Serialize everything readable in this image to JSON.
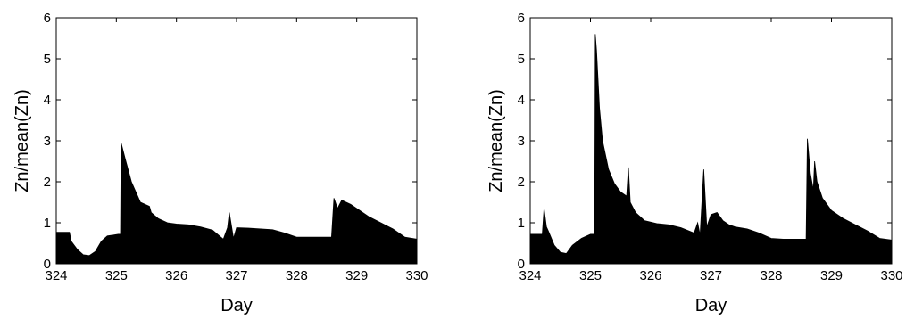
{
  "chart_data": [
    {
      "type": "area",
      "title": "",
      "xlabel": "Day",
      "ylabel": "Zn/mean(Zn)",
      "xlim": [
        324,
        330
      ],
      "ylim": [
        0,
        6
      ],
      "xticks": [
        "324",
        "325",
        "326",
        "327",
        "328",
        "329",
        "330"
      ],
      "yticks": [
        "0",
        "1",
        "2",
        "3",
        "4",
        "5",
        "6"
      ],
      "grid": false,
      "color": "#000000",
      "series": [
        {
          "x": [
            324.0,
            324.22,
            324.25,
            324.35,
            324.45,
            324.55,
            324.65,
            324.75,
            324.85,
            324.95,
            325.03,
            325.07,
            325.08,
            325.15,
            325.25,
            325.4,
            325.55,
            325.58,
            325.7,
            325.85,
            326.0,
            326.2,
            326.4,
            326.6,
            326.78,
            326.85,
            326.88,
            326.95,
            327.0,
            327.2,
            327.4,
            327.6,
            327.8,
            328.0,
            328.2,
            328.4,
            328.58,
            328.62,
            328.68,
            328.75,
            328.9,
            329.05,
            329.2,
            329.4,
            329.6,
            329.8,
            330.0
          ],
          "y": [
            0.77,
            0.77,
            0.55,
            0.35,
            0.22,
            0.2,
            0.3,
            0.55,
            0.68,
            0.7,
            0.72,
            0.72,
            2.95,
            2.55,
            2.0,
            1.5,
            1.4,
            1.25,
            1.1,
            1.0,
            0.97,
            0.95,
            0.9,
            0.82,
            0.6,
            0.88,
            1.25,
            0.62,
            0.88,
            0.87,
            0.85,
            0.83,
            0.75,
            0.65,
            0.65,
            0.65,
            0.65,
            1.6,
            1.35,
            1.55,
            1.45,
            1.3,
            1.15,
            1.0,
            0.85,
            0.65,
            0.6
          ]
        }
      ]
    },
    {
      "type": "area",
      "title": "",
      "xlabel": "Day",
      "ylabel": "Zn/mean(Zn)",
      "xlim": [
        324,
        330
      ],
      "ylim": [
        0,
        6
      ],
      "xticks": [
        "324",
        "325",
        "326",
        "327",
        "328",
        "329",
        "330"
      ],
      "yticks": [
        "0",
        "1",
        "2",
        "3",
        "4",
        "5",
        "6"
      ],
      "grid": false,
      "color": "#000000",
      "series": [
        {
          "x": [
            324.0,
            324.2,
            324.23,
            324.27,
            324.3,
            324.4,
            324.5,
            324.6,
            324.7,
            324.85,
            325.0,
            325.07,
            325.08,
            325.1,
            325.15,
            325.2,
            325.3,
            325.4,
            325.5,
            325.6,
            325.63,
            325.66,
            325.75,
            325.9,
            326.1,
            326.3,
            326.5,
            326.72,
            326.78,
            326.82,
            326.88,
            326.93,
            327.0,
            327.1,
            327.2,
            327.3,
            327.4,
            327.6,
            327.8,
            328.0,
            328.2,
            328.4,
            328.58,
            328.6,
            328.65,
            328.7,
            328.72,
            328.76,
            328.85,
            329.0,
            329.2,
            329.4,
            329.6,
            329.8,
            330.0
          ],
          "y": [
            0.72,
            0.72,
            1.35,
            0.9,
            0.8,
            0.45,
            0.28,
            0.25,
            0.45,
            0.62,
            0.72,
            0.72,
            5.6,
            5.2,
            3.8,
            3.0,
            2.3,
            1.95,
            1.75,
            1.65,
            2.35,
            1.5,
            1.25,
            1.05,
            0.98,
            0.95,
            0.88,
            0.75,
            1.0,
            0.7,
            2.3,
            0.9,
            1.2,
            1.25,
            1.05,
            0.95,
            0.9,
            0.85,
            0.75,
            0.62,
            0.6,
            0.6,
            0.6,
            3.05,
            2.2,
            1.8,
            2.5,
            2.0,
            1.6,
            1.3,
            1.1,
            0.95,
            0.8,
            0.62,
            0.58
          ]
        }
      ]
    }
  ]
}
